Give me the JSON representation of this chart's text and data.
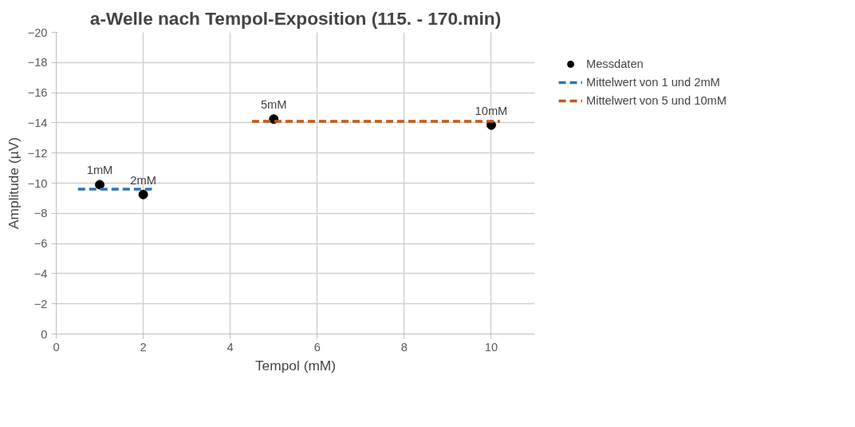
{
  "chart_data": {
    "type": "scatter",
    "title": "a-Welle nach Tempol-Exposition (115. - 170.min)",
    "xlabel": "Tempol (mM)",
    "ylabel": "Amplitude (µV)",
    "xlim": [
      0,
      11
    ],
    "xticks": [
      0,
      2,
      4,
      6,
      8,
      10
    ],
    "ylim": [
      0,
      -20
    ],
    "yticks": [
      0,
      -2,
      -4,
      -6,
      -8,
      -10,
      -12,
      -14,
      -16,
      -18,
      -20
    ],
    "grid": true,
    "legend": "right",
    "series": [
      {
        "name": "Messdaten",
        "marker": "circle",
        "color": "#000000",
        "x": [
          1,
          2,
          5,
          10
        ],
        "values": [
          -9.9,
          -9.25,
          -14.25,
          -13.85
        ]
      },
      {
        "name": "Mittelwert von 1 und 2mM",
        "type": "line",
        "line_style": "dashed",
        "color": "#2e75b6",
        "x": [
          0.5,
          2.2
        ],
        "values": [
          -9.6,
          -9.6
        ]
      },
      {
        "name": "Mittelwert von 5 und 10mM",
        "type": "line",
        "line_style": "dashed",
        "color": "#c55a11",
        "x": [
          4.5,
          10.2
        ],
        "values": [
          -14.1,
          -14.1
        ]
      }
    ],
    "annotations": [
      {
        "text": "1mM",
        "x": 1,
        "y": -9.9
      },
      {
        "text": "2mM",
        "x": 2,
        "y": -9.25
      },
      {
        "text": "5mM",
        "x": 5,
        "y": -14.25
      },
      {
        "text": "10mM",
        "x": 10,
        "y": -13.85
      }
    ]
  }
}
